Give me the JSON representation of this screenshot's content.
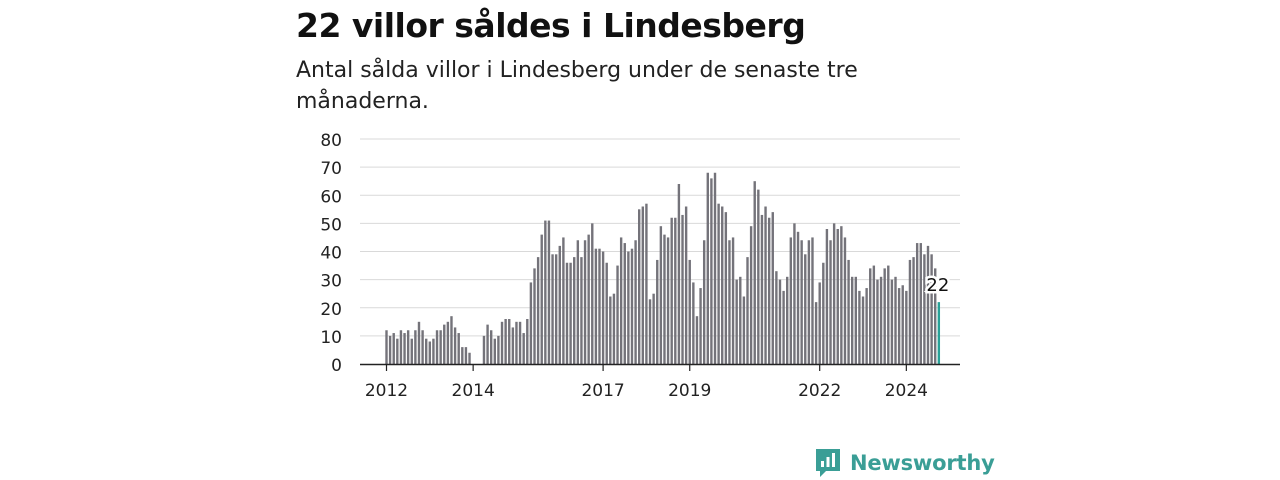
{
  "header": {
    "title": "22 villor såldes i Lindesberg",
    "subtitle": "Antal sålda villor i Lindesberg under de senaste tre månaderna."
  },
  "brand": {
    "name": "Newsworthy"
  },
  "colors": {
    "bar": "#74737a",
    "highlight": "#2aa198",
    "grid": "#d9d9d9",
    "axis": "#222222",
    "brand": "#3a9e96"
  },
  "chart_data": {
    "type": "bar",
    "title": "22 villor såldes i Lindesberg",
    "xlabel": "",
    "ylabel": "",
    "ylim": [
      0,
      80
    ],
    "yticks": [
      "0",
      "10",
      "20",
      "30",
      "40",
      "50",
      "60",
      "70",
      "80"
    ],
    "xticks": [
      "2012",
      "2014",
      "2017",
      "2019",
      "2022",
      "2024"
    ],
    "highlight_label": "22",
    "grid": true,
    "values": [
      12,
      10,
      11,
      9,
      12,
      11,
      12,
      9,
      12,
      15,
      12,
      9,
      8,
      9,
      12,
      12,
      14,
      15,
      17,
      13,
      11,
      6,
      6,
      4,
      null,
      null,
      null,
      10,
      14,
      12,
      9,
      10,
      15,
      16,
      16,
      13,
      15,
      15,
      11,
      16,
      29,
      34,
      38,
      46,
      51,
      51,
      39,
      39,
      42,
      45,
      36,
      36,
      38,
      44,
      38,
      44,
      46,
      50,
      41,
      41,
      40,
      36,
      24,
      25,
      35,
      45,
      43,
      40,
      41,
      44,
      55,
      56,
      57,
      23,
      25,
      37,
      49,
      46,
      45,
      52,
      52,
      64,
      53,
      56,
      37,
      29,
      17,
      27,
      44,
      68,
      66,
      68,
      57,
      56,
      54,
      44,
      45,
      30,
      31,
      24,
      38,
      49,
      65,
      62,
      53,
      56,
      52,
      54,
      33,
      30,
      26,
      31,
      45,
      50,
      47,
      44,
      39,
      44,
      45,
      22,
      29,
      36,
      48,
      44,
      50,
      48,
      49,
      45,
      37,
      31,
      31,
      26,
      24,
      27,
      34,
      35,
      30,
      31,
      34,
      35,
      30,
      31,
      27,
      28,
      26,
      37,
      38,
      43,
      43,
      39,
      42,
      39,
      34,
      22
    ],
    "year_ticks_at_index": [
      0,
      24,
      60,
      84,
      120,
      144
    ]
  }
}
